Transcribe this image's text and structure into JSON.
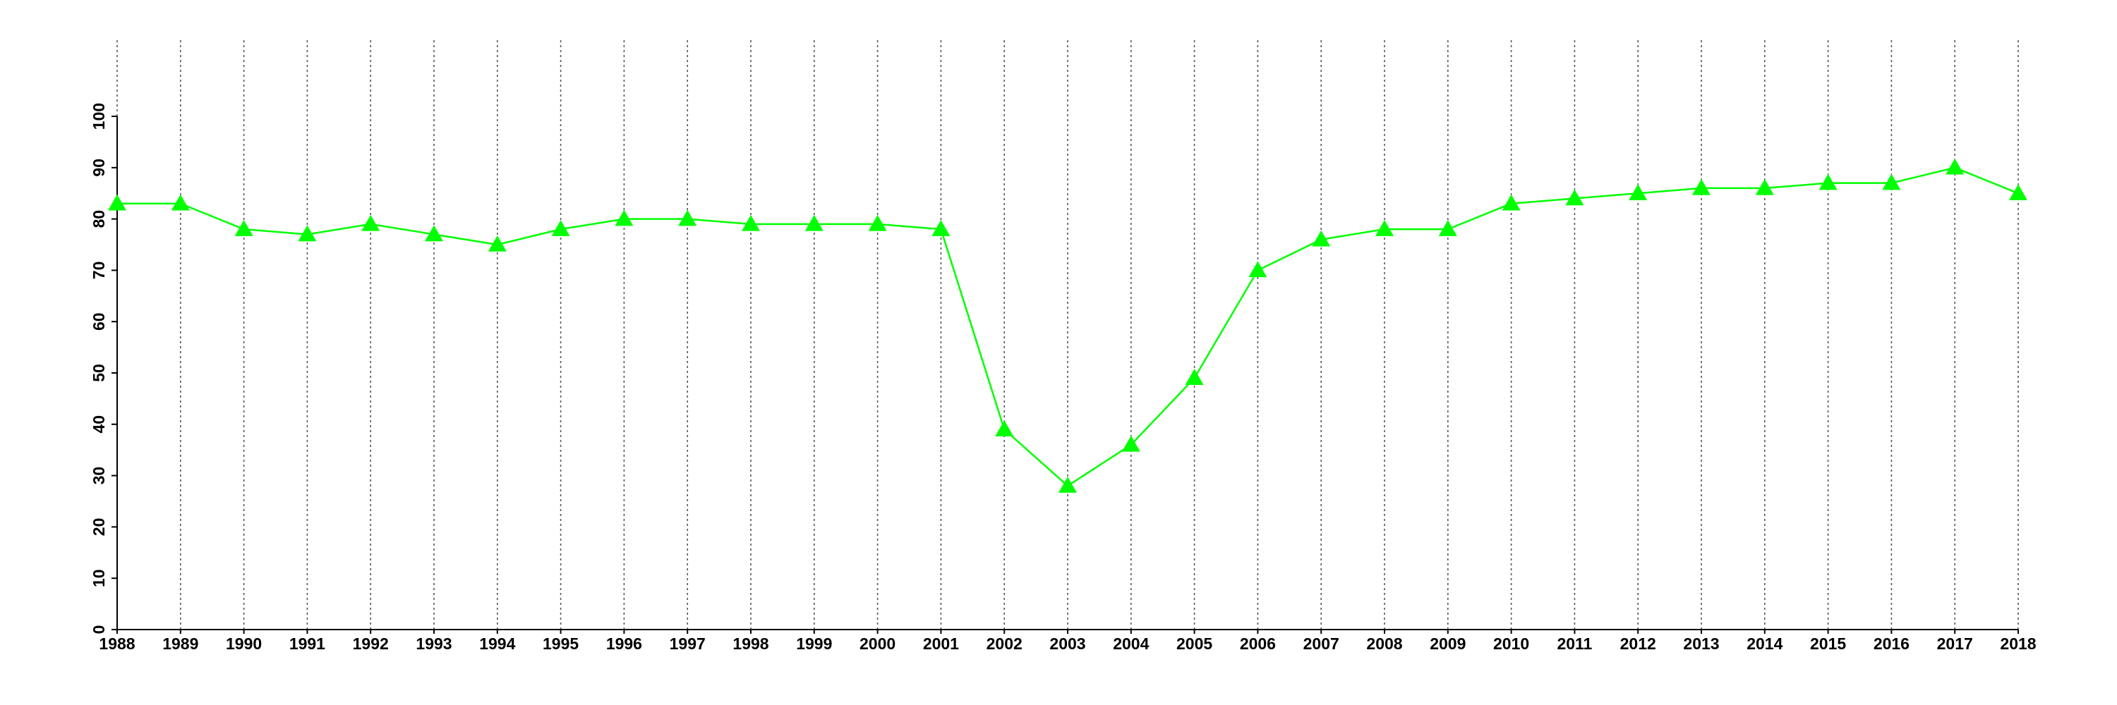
{
  "chart_data": {
    "type": "line",
    "x": [
      1988,
      1989,
      1990,
      1991,
      1992,
      1993,
      1994,
      1995,
      1996,
      1997,
      1998,
      1999,
      2000,
      2001,
      2002,
      2003,
      2004,
      2005,
      2006,
      2007,
      2008,
      2009,
      2010,
      2011,
      2012,
      2013,
      2014,
      2015,
      2016,
      2017,
      2018
    ],
    "series": [
      {
        "color": "#00ff00",
        "marker": "triangle",
        "values": [
          83,
          83,
          78,
          77,
          79,
          77,
          75,
          78,
          80,
          80,
          79,
          79,
          79,
          78,
          39,
          28,
          36,
          49,
          70,
          76,
          78,
          78,
          83,
          84,
          85,
          86,
          86,
          87,
          87,
          90,
          85
        ]
      }
    ],
    "xlim": [
      1988,
      2018
    ],
    "xticks": [
      1988,
      1989,
      1990,
      1991,
      1992,
      1993,
      1994,
      1995,
      1996,
      1997,
      1998,
      1999,
      2000,
      2001,
      2002,
      2003,
      2004,
      2005,
      2006,
      2007,
      2008,
      2009,
      2010,
      2011,
      2012,
      2013,
      2014,
      2015,
      2016,
      2017,
      2018
    ],
    "ylim": [
      0,
      100
    ],
    "yticks": [
      0,
      10,
      20,
      30,
      40,
      50,
      60,
      70,
      80,
      90,
      100
    ],
    "grid": "x"
  }
}
